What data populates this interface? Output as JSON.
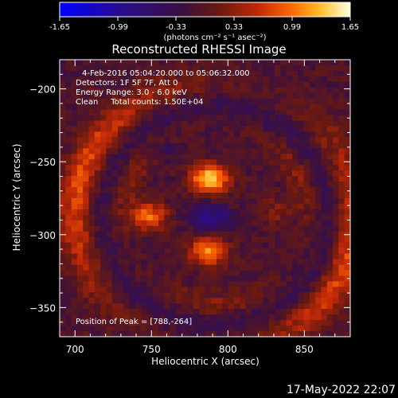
{
  "chart_data": {
    "type": "heatmap",
    "title": "Reconstructed RHESSI Image",
    "xlabel": "Heliocentric X (arcsec)",
    "ylabel": "Heliocentric Y (arcsec)",
    "xlim": [
      690,
      880
    ],
    "ylim": [
      -370,
      -180
    ],
    "x_ticks": [
      700,
      750,
      800,
      850
    ],
    "y_ticks": [
      -200,
      -250,
      -300,
      -350
    ],
    "colorbar": {
      "range": [
        -1.65,
        1.65
      ],
      "ticks": [
        "-1.65",
        "-0.99",
        "-0.33",
        "0.33",
        "0.99",
        "1.65"
      ],
      "unit": "(photons cm⁻² s⁻¹ asec⁻²)",
      "colormap": [
        "#0000ff",
        "#2a0c8a",
        "#3a1040",
        "#6a1a10",
        "#c02808",
        "#ff6a00",
        "#ffc030",
        "#ffffe0"
      ]
    },
    "annotations": [
      "4-Feb-2016 05:04:20.000 to 05:06:32.000",
      "Detectors: 1F 5F 7F, Att 0",
      "Energy Range: 3.0 - 6.0 keV",
      "Clean     Total counts: 1.50E+04"
    ],
    "peak_label": "Position of Peak = [788,-264]",
    "peak": [
      788,
      -264
    ],
    "sources": [
      {
        "x": 788,
        "y": -262,
        "amp": 1.6
      },
      {
        "x": 787,
        "y": -312,
        "amp": 1.25
      },
      {
        "x": 748,
        "y": -287,
        "amp": 1.05
      },
      {
        "x": 832,
        "y": -285,
        "amp": 0.35
      }
    ]
  },
  "footer_date": "17-May-2022 22:07"
}
